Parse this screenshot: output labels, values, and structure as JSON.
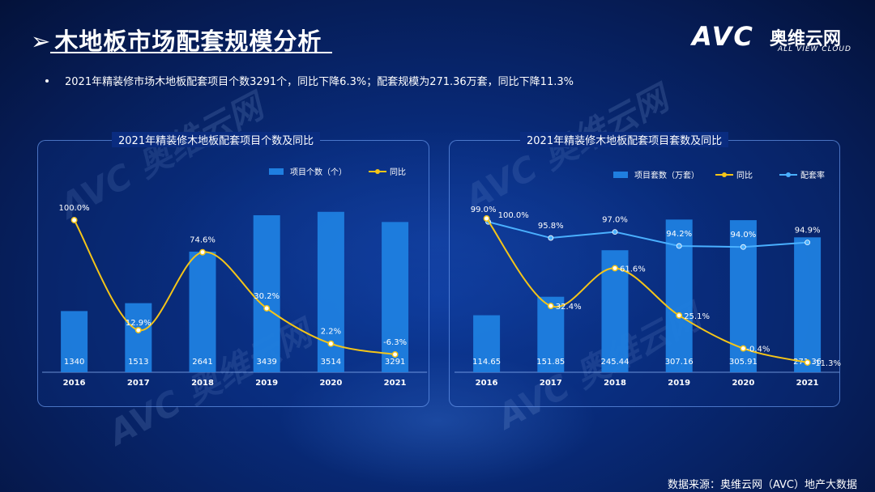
{
  "header": {
    "title": "木地板市场配套规模分析",
    "summary": "2021年精装修市场木地板配套项目个数3291个，同比下降6.3%；配套规模为271.36万套，同比下降11.3%"
  },
  "logo": {
    "mark": "AVC",
    "cn": "奥维云网",
    "en": "ALL VIEW CLOUD"
  },
  "watermark": {
    "cn": "奥维云网",
    "en": "ALL VIEW CLOUD",
    "mark": "AVC"
  },
  "source": "数据来源：奥维云网（AVC）地产大数据",
  "colors": {
    "bar": "#1f7fe0",
    "yoy_line": "#f5c518",
    "rate_line": "#4ab0ff"
  },
  "chart_data": [
    {
      "type": "bar",
      "title": "2021年精装修木地板配套项目个数及同比",
      "categories": [
        "2016",
        "2017",
        "2018",
        "2019",
        "2020",
        "2021"
      ],
      "legend_position": "top-right",
      "series": [
        {
          "name": "项目个数（个）",
          "type": "bar",
          "values": [
            1340,
            1513,
            2641,
            3439,
            3514,
            3291
          ]
        },
        {
          "name": "同比",
          "type": "line",
          "values": [
            100.0,
            12.9,
            74.6,
            30.2,
            2.2,
            -6.3
          ],
          "labels": [
            "100.0%",
            "12.9%",
            "74.6%",
            "30.2%",
            "2.2%",
            "-6.3%"
          ]
        }
      ]
    },
    {
      "type": "bar",
      "title": "2021年精装修木地板配套项目套数及同比",
      "categories": [
        "2016",
        "2017",
        "2018",
        "2019",
        "2020",
        "2021"
      ],
      "legend_position": "top-right",
      "series": [
        {
          "name": "项目套数（万套）",
          "type": "bar",
          "values": [
            114.65,
            151.85,
            245.44,
            307.16,
            305.91,
            271.36
          ],
          "labels": [
            "114.65",
            "151.85",
            "245.44",
            "307.16",
            "305.91",
            "271.36"
          ]
        },
        {
          "name": "同比",
          "type": "line",
          "values": [
            100.0,
            32.4,
            61.6,
            25.1,
            -0.4,
            -11.3
          ],
          "labels": [
            "100.0%",
            "32.4%",
            "61.6%",
            "25.1%",
            "-0.4%",
            "-11.3%"
          ]
        },
        {
          "name": "配套率",
          "type": "line",
          "values": [
            99.0,
            95.8,
            97.0,
            94.2,
            94.0,
            94.9
          ],
          "labels": [
            "99.0%",
            "95.8%",
            "97.0%",
            "94.2%",
            "94.0%",
            "94.9%"
          ]
        }
      ]
    }
  ]
}
